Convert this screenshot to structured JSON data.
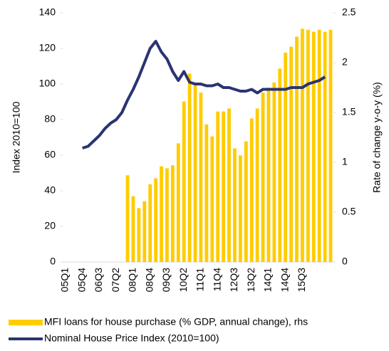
{
  "chart_data": {
    "type": "bar-line",
    "categories": [
      "05Q1",
      null,
      null,
      "05Q4",
      null,
      null,
      "06Q3",
      null,
      null,
      "07Q2",
      null,
      null,
      "08Q1",
      null,
      null,
      "08Q4",
      null,
      null,
      "09Q3",
      null,
      null,
      "10Q2",
      null,
      null,
      "11Q1",
      null,
      null,
      "11Q4",
      null,
      null,
      "12Q3",
      null,
      null,
      "13Q2",
      null,
      null,
      "14Q1",
      null,
      null,
      "14Q4",
      null,
      null,
      "15Q3",
      null,
      null,
      null,
      null,
      null
    ],
    "y_label": "Index 2010=100",
    "y2_label": "Rate of change y-o-y (%)",
    "ylim": [
      0,
      140
    ],
    "yticks": [
      0,
      20,
      40,
      60,
      80,
      100,
      120,
      140
    ],
    "y2lim": [
      0,
      2.5
    ],
    "y2ticks": [
      0,
      0.5,
      1,
      1.5,
      2,
      2.5
    ],
    "series": [
      {
        "name": "MFI loans for house purchase (% GDP, annual change), rhs",
        "kind": "bar",
        "axis": "y2",
        "color": "#ffcc00",
        "values": [
          null,
          null,
          null,
          null,
          null,
          null,
          null,
          null,
          null,
          null,
          null,
          0.87,
          0.66,
          0.54,
          0.61,
          0.78,
          0.84,
          0.96,
          0.94,
          0.97,
          1.19,
          1.61,
          1.89,
          1.79,
          1.7,
          1.38,
          1.26,
          1.51,
          1.51,
          1.54,
          1.14,
          1.07,
          1.21,
          1.44,
          1.54,
          1.7,
          1.75,
          1.8,
          1.94,
          2.1,
          2.16,
          2.26,
          2.34,
          2.33,
          2.31,
          2.33,
          2.31,
          2.33
        ]
      },
      {
        "name": "Nominal House Price Index (2010=100)",
        "kind": "line",
        "axis": "y",
        "color": "#2b3471",
        "values": [
          null,
          null,
          null,
          64,
          65,
          68,
          71,
          75,
          78,
          80,
          84,
          91,
          97,
          104,
          112,
          120,
          124,
          118,
          114,
          107,
          102,
          107,
          101,
          100,
          100,
          99,
          99,
          100,
          98,
          98,
          97,
          96,
          96,
          97,
          95,
          97,
          97,
          97,
          97,
          97,
          98,
          98,
          98,
          100,
          101,
          102,
          104,
          null
        ]
      }
    ]
  }
}
